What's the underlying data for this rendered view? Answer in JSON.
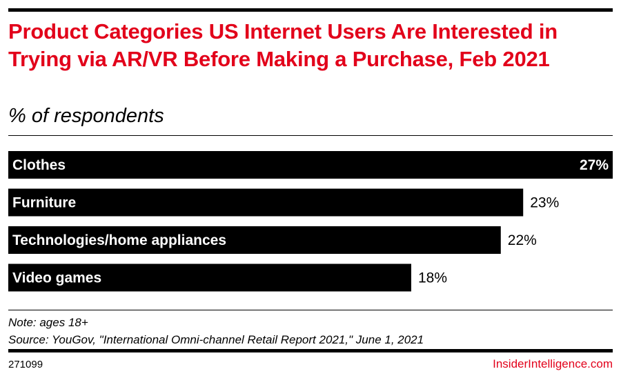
{
  "chart_data": {
    "type": "bar",
    "orientation": "horizontal",
    "title": "Product Categories US Internet Users Are Interested in Trying via AR/VR Before Making a Purchase, Feb 2021",
    "subtitle": "% of respondents",
    "categories": [
      "Clothes",
      "Furniture",
      "Technologies/home appliances",
      "Video games"
    ],
    "values": [
      27,
      23,
      22,
      18
    ],
    "value_labels": [
      "27%",
      "23%",
      "22%",
      "18%"
    ],
    "unit": "%",
    "xlim": [
      0,
      27
    ],
    "bar_color": "#000000",
    "label_color_inside": "#ffffff",
    "legend": "none",
    "grid": false
  },
  "footer": {
    "note": "Note: ages 18+",
    "source": "Source: YouGov, \"International Omni-channel Retail Report 2021,\" June 1, 2021",
    "chart_id": "271099",
    "brand": "InsiderIntelligence.com"
  },
  "colors": {
    "accent": "#e2001a",
    "text": "#000000",
    "background": "#ffffff"
  }
}
